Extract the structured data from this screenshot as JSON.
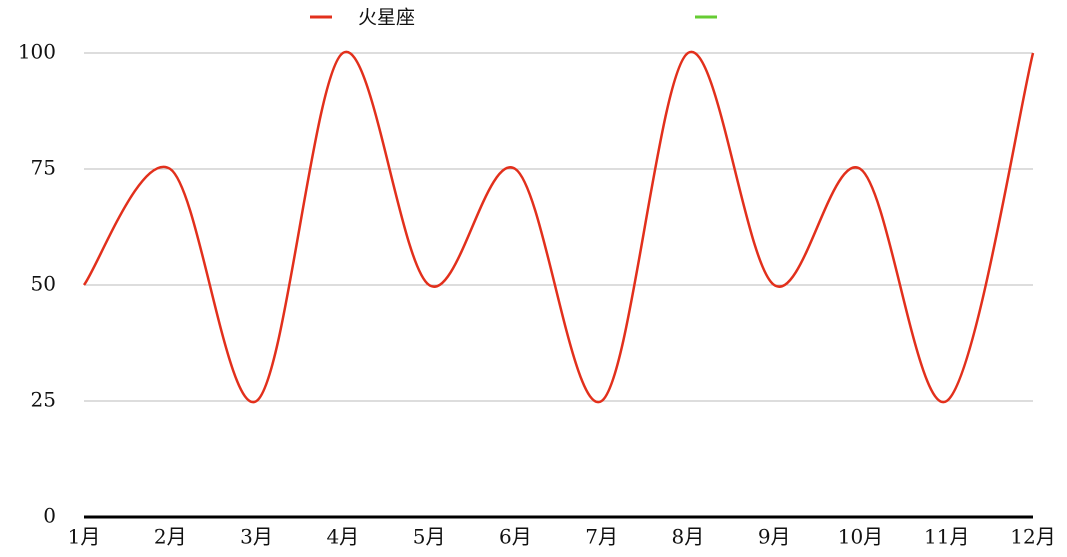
{
  "chart_data": {
    "type": "line",
    "categories": [
      "1月",
      "2月",
      "3月",
      "4月",
      "5月",
      "6月",
      "7月",
      "8月",
      "9月",
      "10月",
      "11月",
      "12月"
    ],
    "series": [
      {
        "name": "火星座",
        "color": "#e2301c",
        "values": [
          50,
          75,
          25,
          100,
          50,
          75,
          25,
          100,
          50,
          75,
          25,
          100
        ]
      },
      {
        "name": null,
        "color": "#66cc33",
        "values": [
          null,
          null,
          null,
          null,
          null,
          null,
          null,
          null,
          null,
          null,
          null,
          null
        ]
      }
    ],
    "ylim": [
      0,
      100
    ],
    "yticks": [
      0,
      25,
      50,
      75,
      100
    ],
    "grid": true,
    "smooth": true,
    "legend": "top"
  }
}
